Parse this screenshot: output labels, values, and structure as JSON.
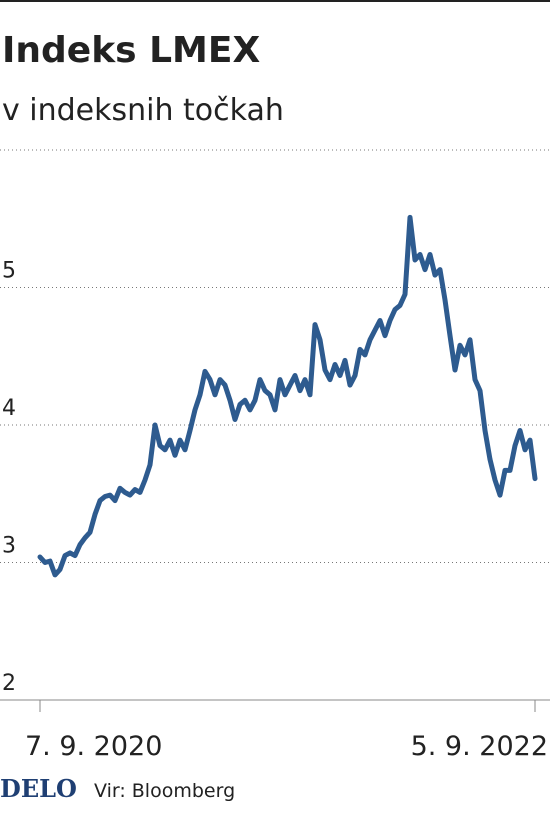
{
  "chart_data": {
    "type": "line",
    "title": "Indeks LMEX",
    "subtitle": "v indeksnih točkah",
    "logo": "DELO",
    "source": "Vir: Bloomberg",
    "categories": [
      "7. 9. 2020",
      null,
      null,
      null,
      null,
      null,
      null,
      null,
      null,
      null,
      null,
      null,
      null,
      null,
      null,
      null,
      null,
      null,
      null,
      null,
      null,
      null,
      null,
      null,
      null,
      null,
      null,
      null,
      null,
      null,
      null,
      null,
      null,
      null,
      null,
      null,
      null,
      null,
      null,
      null,
      null,
      null,
      null,
      null,
      null,
      null,
      null,
      null,
      null,
      null,
      null,
      null,
      null,
      null,
      null,
      null,
      null,
      null,
      null,
      null,
      null,
      null,
      null,
      null,
      null,
      null,
      null,
      null,
      null,
      null,
      null,
      null,
      null,
      null,
      null,
      null,
      null,
      null,
      null,
      null,
      null,
      null,
      null,
      null,
      null,
      null,
      null,
      null,
      null,
      null,
      null,
      null,
      null,
      null,
      null,
      null,
      null,
      null,
      null,
      "5. 9. 2022"
    ],
    "series": [
      {
        "color": "#2e5b8f",
        "values": [
          3.04,
          3.0,
          3.01,
          2.91,
          2.95,
          3.05,
          3.07,
          3.05,
          3.13,
          3.18,
          3.22,
          3.35,
          3.45,
          3.48,
          3.49,
          3.45,
          3.54,
          3.51,
          3.49,
          3.53,
          3.51,
          3.6,
          3.71,
          4.0,
          3.85,
          3.82,
          3.89,
          3.78,
          3.89,
          3.82,
          3.96,
          4.11,
          4.22,
          4.39,
          4.33,
          4.22,
          4.33,
          4.29,
          4.18,
          4.04,
          4.15,
          4.18,
          4.11,
          4.18,
          4.33,
          4.25,
          4.22,
          4.11,
          4.33,
          4.22,
          4.29,
          4.36,
          4.25,
          4.33,
          4.22,
          4.73,
          4.62,
          4.4,
          4.33,
          4.44,
          4.36,
          4.47,
          4.29,
          4.36,
          4.55,
          4.51,
          4.62,
          4.69,
          4.76,
          4.65,
          4.76,
          4.84,
          4.87,
          4.95,
          5.51,
          5.2,
          5.24,
          5.13,
          5.24,
          5.09,
          5.13,
          4.91,
          4.65,
          4.4,
          4.58,
          4.51,
          4.62,
          4.33,
          4.25,
          3.96,
          3.75,
          3.6,
          3.49,
          3.67,
          3.67,
          3.85,
          3.96,
          3.82,
          3.89,
          3.61
        ]
      }
    ],
    "ylim": [
      2,
      6
    ],
    "yticks": [
      2,
      3,
      4,
      5
    ],
    "grid": true
  }
}
